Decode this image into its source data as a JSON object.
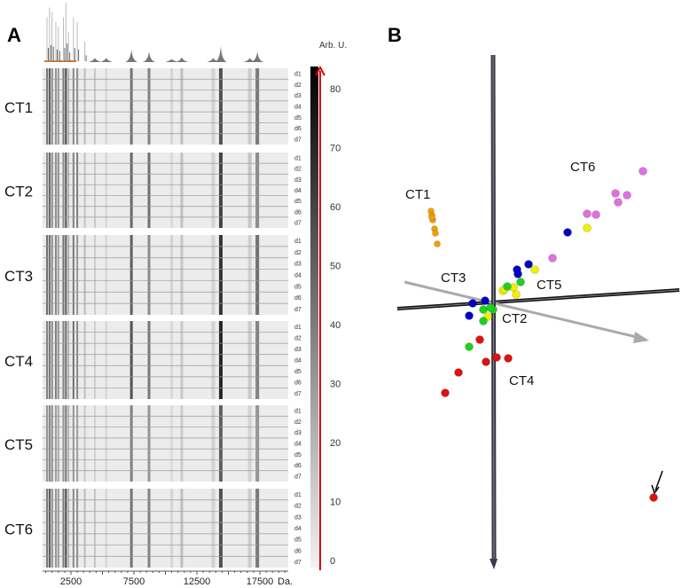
{
  "panels": {
    "a_label": "A",
    "b_label": "B"
  },
  "chart_data": [
    {
      "type": "heatmap",
      "title": "",
      "xlabel": "Da.",
      "x_ticks": [
        2500,
        7500,
        12500,
        17500
      ],
      "xlim": [
        250,
        19750
      ],
      "groups": [
        "CT1",
        "CT2",
        "CT3",
        "CT4",
        "CT5",
        "CT6"
      ],
      "rows": [
        "d1",
        "d2",
        "d3",
        "d4",
        "d5",
        "d6",
        "d7"
      ],
      "colorbar": {
        "label": "Arb. U.",
        "ticks": [
          0,
          10,
          20,
          30,
          40,
          50,
          60,
          70,
          80
        ],
        "range": [
          0,
          85
        ],
        "colors": [
          "#f2f2f2",
          "#000000"
        ],
        "marker_color": "#e00000"
      },
      "bands": [
        {
          "mass": 600,
          "intensity": 45
        },
        {
          "mass": 800,
          "intensity": 55
        },
        {
          "mass": 1000,
          "intensity": 50
        },
        {
          "mass": 1300,
          "intensity": 40
        },
        {
          "mass": 1500,
          "intensity": 35
        },
        {
          "mass": 1900,
          "intensity": 45
        },
        {
          "mass": 2100,
          "intensity": 60
        },
        {
          "mass": 2300,
          "intensity": 30
        },
        {
          "mass": 2700,
          "intensity": 45
        },
        {
          "mass": 3000,
          "intensity": 40
        },
        {
          "mass": 3600,
          "intensity": 20
        },
        {
          "mass": 4400,
          "intensity": 15
        },
        {
          "mass": 5300,
          "intensity": 15
        },
        {
          "mass": 7300,
          "intensity": 55
        },
        {
          "mass": 8700,
          "intensity": 45
        },
        {
          "mass": 10500,
          "intensity": 10
        },
        {
          "mass": 11300,
          "intensity": 18
        },
        {
          "mass": 13800,
          "intensity": 15
        },
        {
          "mass": 14400,
          "intensity": 70
        },
        {
          "mass": 16700,
          "intensity": 15
        },
        {
          "mass": 17300,
          "intensity": 45
        }
      ],
      "spectrum_color": "#777777",
      "spectrum_baseline_color": "#e07020"
    },
    {
      "type": "scatter",
      "title": "",
      "xlim": [
        -11,
        22
      ],
      "ylim": [
        -30,
        29
      ],
      "series": [
        {
          "name": "CT1",
          "color": "#f0a000",
          "points": [
            [
              -6.9,
              10.7
            ],
            [
              -6.8,
              10.2
            ],
            [
              -6.7,
              9.7
            ],
            [
              -6.8,
              10.0
            ],
            [
              -6.5,
              8.7
            ],
            [
              -6.4,
              8.2
            ],
            [
              -6.2,
              7.0
            ]
          ]
        },
        {
          "name": "CT6",
          "color": "#e070e0",
          "points": [
            [
              17.0,
              15.2
            ],
            [
              13.9,
              12.7
            ],
            [
              15.2,
              12.5
            ],
            [
              14.2,
              11.7
            ],
            [
              10.7,
              10.4
            ],
            [
              11.7,
              10.3
            ],
            [
              6.8,
              5.4
            ]
          ]
        },
        {
          "name": "CT5",
          "color": "#f0f000",
          "points": [
            [
              10.7,
              8.8
            ],
            [
              4.8,
              4.1
            ],
            [
              1.2,
              1.7
            ],
            [
              2.4,
              2.1
            ],
            [
              2.7,
              1.3
            ],
            [
              1.4,
              1.9
            ],
            [
              -0.5,
              -1.2
            ]
          ]
        },
        {
          "name": "CT3",
          "color": "#0000c0",
          "points": [
            [
              8.5,
              8.3
            ],
            [
              4.1,
              4.7
            ],
            [
              2.8,
              4.1
            ],
            [
              2.9,
              3.6
            ],
            [
              -2.2,
              0.3
            ],
            [
              -0.8,
              0.6
            ],
            [
              -2.6,
              -1.1
            ]
          ]
        },
        {
          "name": "CT2",
          "color": "#20d020",
          "points": [
            [
              1.7,
              2.2
            ],
            [
              3.2,
              2.7
            ],
            [
              -1.0,
              -0.4
            ],
            [
              0.1,
              -0.4
            ],
            [
              -0.2,
              -0.2
            ],
            [
              -1.0,
              -1.7
            ],
            [
              -2.6,
              -4.6
            ]
          ]
        },
        {
          "name": "CT4",
          "color": "#e01010",
          "points": [
            [
              -1.4,
              -3.8
            ],
            [
              0.5,
              -5.8
            ],
            [
              1.8,
              -5.9
            ],
            [
              -0.7,
              -6.3
            ],
            [
              -3.8,
              -7.5
            ],
            [
              -5.3,
              -9.8
            ],
            [
              18.2,
              -21.6
            ]
          ]
        }
      ],
      "axes_3d": true
    }
  ]
}
